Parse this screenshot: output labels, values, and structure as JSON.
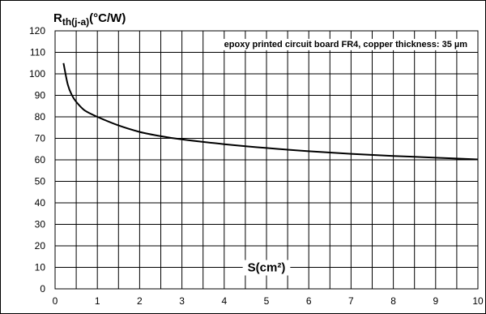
{
  "chart_data": {
    "type": "line",
    "title": "",
    "ylabel_main": "R",
    "ylabel_sub": "th(j-a)",
    "ylabel_unit": "(°C/W)",
    "xlabel": "S(cm²)",
    "annotation": "epoxy printed circuit board FR4, copper thickness: 35 µm",
    "xlim": [
      0,
      10
    ],
    "ylim": [
      0,
      120
    ],
    "x_ticks": [
      "0",
      "1",
      "2",
      "3",
      "4",
      "5",
      "6",
      "7",
      "8",
      "9",
      "10"
    ],
    "y_ticks": [
      "0",
      "10",
      "20",
      "30",
      "40",
      "50",
      "60",
      "70",
      "80",
      "90",
      "100",
      "110",
      "120"
    ],
    "grid": true,
    "series": [
      {
        "x": [
          0.2,
          0.3,
          0.4,
          0.5,
          0.7,
          1.0,
          1.5,
          2.0,
          2.5,
          3.0,
          4.0,
          5.0,
          6.0,
          7.0,
          8.0,
          9.0,
          10.0
        ],
        "y": [
          105,
          95,
          90,
          87,
          83,
          80,
          76,
          73,
          71,
          69.5,
          67.3,
          65.5,
          64,
          62.8,
          61.8,
          61,
          60.2
        ]
      }
    ],
    "colors": {
      "line": "#000000",
      "grid": "#000000"
    }
  }
}
